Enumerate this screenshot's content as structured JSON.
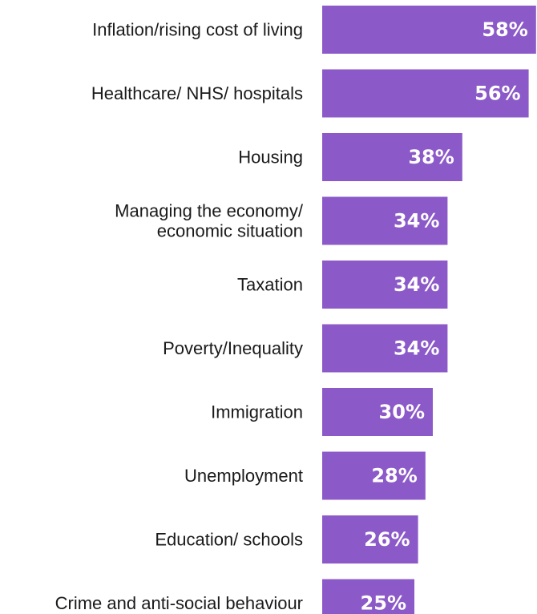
{
  "chart_data": {
    "type": "bar",
    "orientation": "horizontal",
    "categories": [
      [
        "Inflation/rising cost of living"
      ],
      [
        "Healthcare/ NHS/ hospitals"
      ],
      [
        "Housing"
      ],
      [
        "Managing the economy/",
        "economic situation"
      ],
      [
        "Taxation"
      ],
      [
        "Poverty/Inequality"
      ],
      [
        "Immigration"
      ],
      [
        "Unemployment"
      ],
      [
        "Education/ schools"
      ],
      [
        "Crime and anti-social behaviour"
      ]
    ],
    "values": [
      58,
      56,
      38,
      34,
      34,
      34,
      30,
      28,
      26,
      25
    ],
    "value_labels": [
      "58%",
      "56%",
      "38%",
      "34%",
      "34%",
      "34%",
      "30%",
      "28%",
      "26%",
      "25%"
    ],
    "bar_color": "#8c5ac8",
    "xlim": [
      0,
      60
    ],
    "grid": false,
    "legend": "none"
  }
}
